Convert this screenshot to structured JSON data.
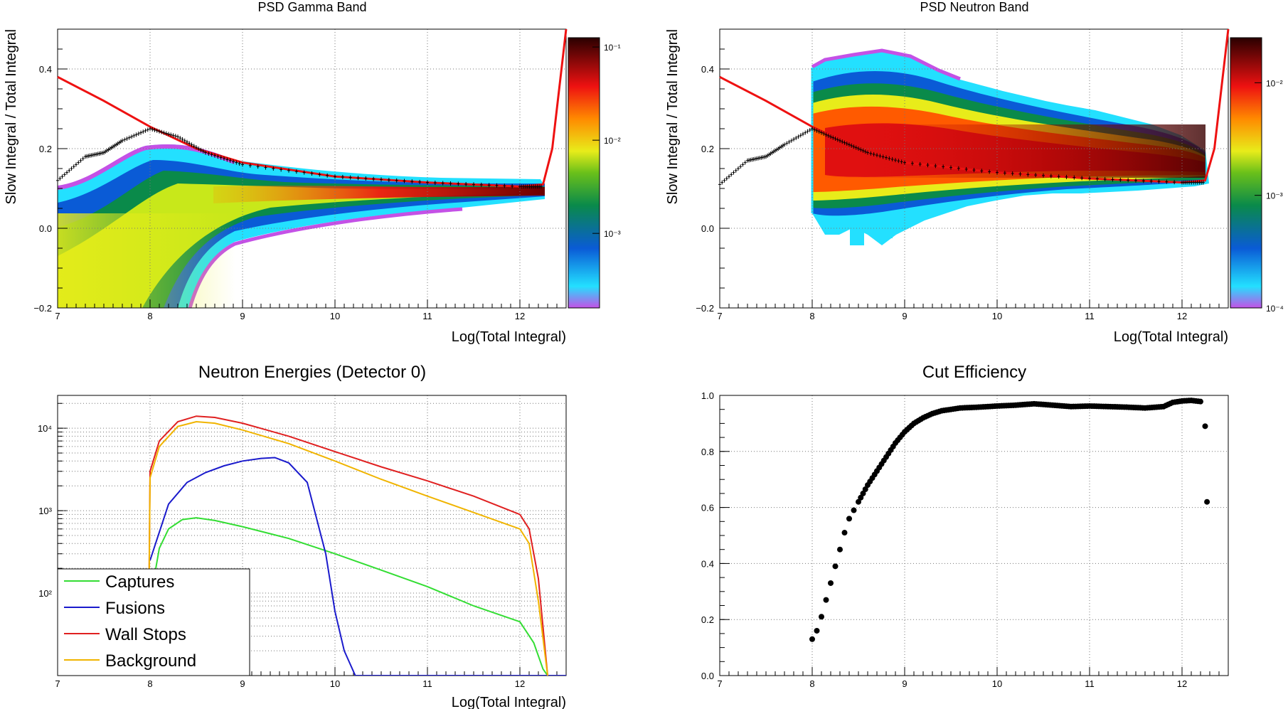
{
  "panels": {
    "gamma": {
      "title": "PSD Gamma Band",
      "xlabel": "Log(Total Integral)",
      "ylabel": "Slow Integral / Total Integral",
      "xticks": [
        "7",
        "8",
        "9",
        "10",
        "11",
        "12"
      ],
      "yticks": [
        "−0.2",
        "0.0",
        "0.2",
        "0.4"
      ],
      "colorbar": {
        "labels": [
          "10⁻³",
          "10⁻²",
          "10⁻¹"
        ],
        "label_levels": [
          -3,
          -2,
          -1
        ],
        "log_range": [
          -3.8,
          -0.9
        ]
      }
    },
    "neutron": {
      "title": "PSD Neutron Band",
      "xlabel": "Log(Total Integral)",
      "ylabel": "Slow Integral / Total Integral",
      "xticks": [
        "7",
        "8",
        "9",
        "10",
        "11",
        "12"
      ],
      "yticks": [
        "−0.2",
        "0.0",
        "0.2",
        "0.4"
      ],
      "colorbar": {
        "labels": [
          "10⁻⁴",
          "10⁻³",
          "10⁻²"
        ],
        "label_levels": [
          -4,
          -3,
          -2
        ],
        "log_range": [
          -4.0,
          -1.6
        ]
      }
    },
    "energies": {
      "title": "Neutron Energies (Detector 0)",
      "xlabel": "Log(Total Integral)",
      "xticks": [
        "7",
        "8",
        "9",
        "10",
        "11",
        "12"
      ],
      "yticks": [
        "10²",
        "10³",
        "10⁴"
      ]
    },
    "efficiency": {
      "title": "Cut Efficiency",
      "xticks": [
        "7",
        "8",
        "9",
        "10",
        "11",
        "12"
      ],
      "yticks": [
        "0.0",
        "0.2",
        "0.4",
        "0.6",
        "0.8",
        "1.0"
      ]
    }
  },
  "legend": {
    "captures": "Captures",
    "fusions": "Fusions",
    "wall_stops": "Wall Stops",
    "background": "Background"
  },
  "colors": {
    "captures": "#33dd33",
    "fusions": "#1a1acc",
    "wall_stops": "#e02020",
    "background": "#f0b400",
    "cut_line": "#ee1111",
    "profile": "#000000"
  },
  "chart_data": [
    {
      "type": "heatmap",
      "title": "PSD Gamma Band",
      "xlabel": "Log(Total Integral)",
      "ylabel": "Slow Integral / Total Integral",
      "xlim": [
        7,
        12.5
      ],
      "ylim": [
        -0.2,
        0.5
      ],
      "zscale": "log",
      "band_center_y": [
        [
          7.0,
          -0.05
        ],
        [
          8.0,
          0.02
        ],
        [
          9.0,
          0.065
        ],
        [
          10.0,
          0.078
        ],
        [
          11.0,
          0.083
        ],
        [
          12.0,
          0.088
        ],
        [
          12.25,
          0.09
        ]
      ],
      "cut_line": [
        [
          7.0,
          0.38
        ],
        [
          7.5,
          0.32
        ],
        [
          8.0,
          0.255
        ],
        [
          8.5,
          0.2
        ],
        [
          9.0,
          0.165
        ],
        [
          10.0,
          0.13
        ],
        [
          11.0,
          0.115
        ],
        [
          12.0,
          0.105
        ],
        [
          12.25,
          0.11
        ],
        [
          12.35,
          0.2
        ],
        [
          12.45,
          0.4
        ],
        [
          12.5,
          0.5
        ]
      ],
      "profile": [
        [
          7.0,
          0.12
        ],
        [
          7.3,
          0.18
        ],
        [
          7.5,
          0.19
        ],
        [
          7.7,
          0.22
        ],
        [
          8.0,
          0.25
        ],
        [
          8.3,
          0.23
        ],
        [
          8.6,
          0.19
        ],
        [
          9.0,
          0.16
        ],
        [
          10.0,
          0.13
        ],
        [
          11.0,
          0.115
        ],
        [
          12.0,
          0.105
        ],
        [
          12.25,
          0.105
        ]
      ]
    },
    {
      "type": "heatmap",
      "title": "PSD Neutron Band",
      "xlabel": "Log(Total Integral)",
      "ylabel": "Slow Integral / Total Integral",
      "xlim": [
        7,
        12.5
      ],
      "ylim": [
        -0.2,
        0.5
      ],
      "zscale": "log",
      "band_center_y": [
        [
          8.0,
          0.24
        ],
        [
          8.5,
          0.23
        ],
        [
          9.0,
          0.215
        ],
        [
          10.0,
          0.19
        ],
        [
          11.0,
          0.16
        ],
        [
          12.0,
          0.135
        ],
        [
          12.25,
          0.13
        ]
      ],
      "cut_line": [
        [
          7.0,
          0.38
        ],
        [
          7.5,
          0.32
        ],
        [
          8.0,
          0.255
        ],
        [
          8.5,
          0.2
        ],
        [
          9.0,
          0.165
        ],
        [
          10.0,
          0.14
        ],
        [
          11.0,
          0.125
        ],
        [
          12.0,
          0.115
        ],
        [
          12.25,
          0.12
        ],
        [
          12.35,
          0.2
        ],
        [
          12.45,
          0.4
        ],
        [
          12.5,
          0.5
        ]
      ],
      "profile": [
        [
          7.0,
          0.11
        ],
        [
          7.3,
          0.17
        ],
        [
          7.5,
          0.18
        ],
        [
          7.7,
          0.21
        ],
        [
          8.0,
          0.25
        ],
        [
          8.3,
          0.22
        ],
        [
          8.6,
          0.19
        ],
        [
          9.0,
          0.165
        ],
        [
          10.0,
          0.14
        ],
        [
          11.0,
          0.125
        ],
        [
          12.0,
          0.115
        ],
        [
          12.25,
          0.115
        ]
      ]
    },
    {
      "type": "line",
      "title": "Neutron Energies (Detector 0)",
      "xlabel": "Log(Total Integral)",
      "xlim": [
        7,
        12.5
      ],
      "yscale": "log",
      "ylim": [
        10,
        25000
      ],
      "series": [
        {
          "name": "Captures",
          "points": [
            [
              7.98,
              10
            ],
            [
              8.0,
              80
            ],
            [
              8.1,
              350
            ],
            [
              8.2,
              600
            ],
            [
              8.35,
              780
            ],
            [
              8.5,
              820
            ],
            [
              8.7,
              760
            ],
            [
              9.0,
              640
            ],
            [
              9.5,
              460
            ],
            [
              10.0,
              300
            ],
            [
              10.5,
              190
            ],
            [
              11.0,
              120
            ],
            [
              11.5,
              70
            ],
            [
              12.0,
              45
            ],
            [
              12.15,
              25
            ],
            [
              12.25,
              12
            ],
            [
              12.3,
              10
            ]
          ]
        },
        {
          "name": "Fusions",
          "points": [
            [
              8.0,
              250
            ],
            [
              8.2,
              1200
            ],
            [
              8.4,
              2200
            ],
            [
              8.6,
              2900
            ],
            [
              8.8,
              3500
            ],
            [
              9.0,
              4000
            ],
            [
              9.2,
              4300
            ],
            [
              9.35,
              4400
            ],
            [
              9.5,
              3800
            ],
            [
              9.7,
              2200
            ],
            [
              9.9,
              300
            ],
            [
              10.0,
              60
            ],
            [
              10.1,
              20
            ],
            [
              10.22,
              10
            ],
            [
              12.5,
              10
            ]
          ]
        },
        {
          "name": "Wall Stops",
          "points": [
            [
              7.98,
              10
            ],
            [
              8.0,
              3000
            ],
            [
              8.1,
              7000
            ],
            [
              8.3,
              12000
            ],
            [
              8.5,
              14000
            ],
            [
              8.7,
              13500
            ],
            [
              9.0,
              11500
            ],
            [
              9.5,
              8000
            ],
            [
              10.0,
              5200
            ],
            [
              10.5,
              3400
            ],
            [
              11.0,
              2300
            ],
            [
              11.5,
              1500
            ],
            [
              12.0,
              900
            ],
            [
              12.1,
              600
            ],
            [
              12.2,
              150
            ],
            [
              12.3,
              10
            ]
          ]
        },
        {
          "name": "Background",
          "points": [
            [
              7.98,
              10
            ],
            [
              8.0,
              2500
            ],
            [
              8.1,
              6000
            ],
            [
              8.3,
              10500
            ],
            [
              8.5,
              12000
            ],
            [
              8.7,
              11500
            ],
            [
              9.0,
              9500
            ],
            [
              9.5,
              6500
            ],
            [
              10.0,
              4000
            ],
            [
              10.5,
              2400
            ],
            [
              11.0,
              1500
            ],
            [
              11.5,
              950
            ],
            [
              12.0,
              600
            ],
            [
              12.1,
              400
            ],
            [
              12.2,
              80
            ],
            [
              12.3,
              10
            ]
          ]
        }
      ]
    },
    {
      "type": "scatter",
      "title": "Cut Efficiency",
      "xlim": [
        7,
        12.5
      ],
      "ylim": [
        0,
        1
      ],
      "points": [
        [
          8.0,
          0.13
        ],
        [
          8.05,
          0.16
        ],
        [
          8.1,
          0.21
        ],
        [
          8.15,
          0.27
        ],
        [
          8.2,
          0.33
        ],
        [
          8.25,
          0.39
        ],
        [
          8.3,
          0.45
        ],
        [
          8.35,
          0.51
        ],
        [
          8.4,
          0.56
        ],
        [
          8.45,
          0.59
        ],
        [
          8.5,
          0.62
        ],
        [
          8.6,
          0.68
        ],
        [
          8.7,
          0.73
        ],
        [
          8.8,
          0.78
        ],
        [
          8.9,
          0.83
        ],
        [
          9.0,
          0.87
        ],
        [
          9.1,
          0.9
        ],
        [
          9.2,
          0.92
        ],
        [
          9.3,
          0.935
        ],
        [
          9.4,
          0.945
        ],
        [
          9.5,
          0.95
        ],
        [
          9.6,
          0.955
        ],
        [
          9.8,
          0.958
        ],
        [
          10.0,
          0.962
        ],
        [
          10.2,
          0.965
        ],
        [
          10.4,
          0.97
        ],
        [
          10.6,
          0.965
        ],
        [
          10.8,
          0.96
        ],
        [
          11.0,
          0.962
        ],
        [
          11.2,
          0.96
        ],
        [
          11.4,
          0.958
        ],
        [
          11.6,
          0.955
        ],
        [
          11.8,
          0.96
        ],
        [
          11.9,
          0.975
        ],
        [
          12.0,
          0.98
        ],
        [
          12.1,
          0.982
        ],
        [
          12.2,
          0.978
        ],
        [
          12.25,
          0.89
        ],
        [
          12.27,
          0.62
        ]
      ]
    }
  ]
}
